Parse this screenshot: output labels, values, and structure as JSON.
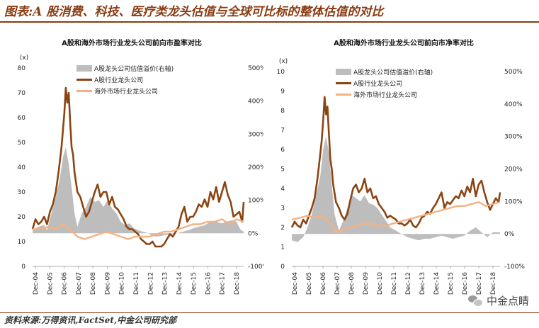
{
  "figure": {
    "title": "图表:A 股消费、科技、医疗类龙头估值与全球可比标的整体估值的对比",
    "source": "资料来源:万得资讯,FactSet,中金公司研究部",
    "watermark": "中金点睛"
  },
  "chart_data": [
    {
      "type": "line",
      "title": "A股和海外市场行业龙头公司前向市盈率对比",
      "left_unit": "(x)",
      "ylim": [
        0,
        80
      ],
      "yticks": [
        0,
        10,
        20,
        30,
        40,
        50,
        60,
        70,
        80
      ],
      "ylim_right": [
        -100,
        500
      ],
      "yticks_right": [
        -100,
        0,
        100,
        200,
        300,
        400,
        500
      ],
      "yticks_right_labels": [
        "-100%",
        "0%",
        "100%",
        "200%",
        "300%",
        "400%",
        "500%"
      ],
      "x_tick_labels": [
        "Dec-04",
        "Dec-05",
        "Dec-06",
        "Dec-07",
        "Dec-08",
        "Dec-09",
        "Dec-10",
        "Dec-11",
        "Dec-12",
        "Dec-13",
        "Dec-14",
        "Dec-15",
        "Dec-16",
        "Dec-17",
        "Dec-18"
      ],
      "xlim": [
        2004.9,
        2019.5
      ],
      "legend": {
        "position": "top-left"
      },
      "series": [
        {
          "name": "A股龙头公司估值溢价(右轴)",
          "type": "area",
          "axis": "right",
          "color": "#bdbdbd",
          "x": [
            2004.9,
            2005.3,
            2005.7,
            2005.9,
            2006.2,
            2006.5,
            2006.8,
            2007.0,
            2007.2,
            2007.4,
            2007.6,
            2007.8,
            2008.0,
            2008.3,
            2008.6,
            2008.9,
            2009.2,
            2009.5,
            2009.8,
            2010.1,
            2010.4,
            2010.7,
            2011.0,
            2011.3,
            2011.6,
            2011.9,
            2012.2,
            2012.5,
            2012.8,
            2013.1,
            2013.4,
            2013.8,
            2014.1,
            2014.5,
            2014.9,
            2015.3,
            2015.7,
            2016.0,
            2016.4,
            2016.8,
            2017.2,
            2017.6,
            2018.0,
            2018.3,
            2018.7,
            2019.0,
            2019.3,
            2019.5
          ],
          "values": [
            10,
            20,
            25,
            10,
            60,
            110,
            170,
            230,
            260,
            210,
            140,
            60,
            20,
            60,
            80,
            110,
            95,
            100,
            80,
            100,
            75,
            60,
            35,
            25,
            30,
            15,
            10,
            5,
            2,
            -5,
            -10,
            -8,
            -5,
            -3,
            0,
            5,
            10,
            15,
            20,
            25,
            35,
            35,
            30,
            35,
            40,
            35,
            10,
            5
          ]
        },
        {
          "name": "A股行业龙头公司",
          "type": "line",
          "axis": "left",
          "color": "#8b4513",
          "x": [
            2004.9,
            2005.1,
            2005.3,
            2005.5,
            2005.7,
            2005.9,
            2006.1,
            2006.3,
            2006.5,
            2006.7,
            2006.9,
            2007.0,
            2007.1,
            2007.2,
            2007.3,
            2007.4,
            2007.5,
            2007.6,
            2007.7,
            2007.8,
            2008.0,
            2008.2,
            2008.4,
            2008.6,
            2008.8,
            2009.0,
            2009.2,
            2009.4,
            2009.6,
            2009.8,
            2010.0,
            2010.2,
            2010.4,
            2010.6,
            2010.8,
            2011.0,
            2011.2,
            2011.4,
            2011.6,
            2011.8,
            2012.0,
            2012.2,
            2012.4,
            2012.6,
            2012.8,
            2013.0,
            2013.2,
            2013.4,
            2013.6,
            2013.8,
            2014.0,
            2014.2,
            2014.4,
            2014.6,
            2014.8,
            2015.0,
            2015.2,
            2015.4,
            2015.6,
            2015.8,
            2016.0,
            2016.2,
            2016.4,
            2016.6,
            2016.8,
            2017.0,
            2017.2,
            2017.4,
            2017.6,
            2017.8,
            2018.0,
            2018.2,
            2018.4,
            2018.6,
            2018.8,
            2019.0,
            2019.2,
            2019.4,
            2019.5
          ],
          "values": [
            15,
            19,
            17,
            18,
            20,
            17,
            22,
            25,
            30,
            38,
            48,
            55,
            62,
            72,
            66,
            70,
            58,
            48,
            45,
            38,
            30,
            28,
            24,
            20,
            22,
            26,
            30,
            33,
            28,
            30,
            30,
            25,
            28,
            24,
            23,
            21,
            19,
            16,
            15,
            15,
            14,
            13,
            11,
            10,
            9,
            9,
            10,
            8,
            8,
            8,
            9,
            11,
            13,
            12,
            14,
            16,
            21,
            24,
            18,
            20,
            20,
            22,
            25,
            24,
            27,
            24,
            30,
            27,
            32,
            26,
            30,
            34,
            29,
            26,
            20,
            21,
            22,
            18,
            26
          ]
        },
        {
          "name": "海外市场行业龙头公司",
          "type": "line",
          "axis": "left",
          "color": "#f4b183",
          "x": [
            2004.9,
            2005.5,
            2006.0,
            2006.5,
            2007.0,
            2007.5,
            2008.0,
            2008.5,
            2009.0,
            2009.5,
            2010.0,
            2010.5,
            2011.0,
            2011.5,
            2012.0,
            2012.5,
            2013.0,
            2013.5,
            2014.0,
            2014.5,
            2015.0,
            2015.5,
            2016.0,
            2016.5,
            2017.0,
            2017.5,
            2018.0,
            2018.5,
            2019.0,
            2019.5
          ],
          "values": [
            15,
            15,
            16,
            15,
            17,
            15,
            12,
            11,
            12,
            13,
            14,
            13,
            12,
            11,
            12,
            12,
            12,
            13,
            14,
            14,
            15,
            16,
            17,
            17,
            18,
            18,
            19,
            17,
            19,
            18
          ]
        }
      ]
    },
    {
      "type": "line",
      "title": "A股和海外市场行业龙头公司前向市净率对比",
      "left_unit": "(x)",
      "ylim": [
        0,
        10
      ],
      "yticks": [
        0,
        1,
        2,
        3,
        4,
        5,
        6,
        7,
        8,
        9,
        10
      ],
      "ylim_right": [
        -100,
        500
      ],
      "yticks_right": [
        -100,
        0,
        100,
        200,
        300,
        400,
        500
      ],
      "yticks_right_labels": [
        "-100%",
        "0%",
        "100%",
        "200%",
        "300%",
        "400%",
        "500%"
      ],
      "x_tick_labels": [
        "Dec-04",
        "Dec-05",
        "Dec-06",
        "Dec-07",
        "Dec-08",
        "Dec-09",
        "Dec-10",
        "Dec-11",
        "Dec-12",
        "Dec-13",
        "Dec-14",
        "Dec-15",
        "Dec-16",
        "Dec-17",
        "Dec-18"
      ],
      "xlim": [
        2004.9,
        2019.5
      ],
      "legend": {
        "position": "top-left"
      },
      "series": [
        {
          "name": "A股龙头公司估值溢价(右轴)",
          "type": "area",
          "axis": "right",
          "color": "#bdbdbd",
          "x": [
            2004.9,
            2005.3,
            2005.7,
            2006.0,
            2006.3,
            2006.6,
            2006.9,
            2007.1,
            2007.3,
            2007.5,
            2007.7,
            2007.9,
            2008.2,
            2008.5,
            2008.8,
            2009.1,
            2009.4,
            2009.7,
            2010.0,
            2010.3,
            2010.6,
            2010.9,
            2011.2,
            2011.5,
            2011.8,
            2012.2,
            2012.6,
            2013.0,
            2013.4,
            2013.8,
            2014.2,
            2014.6,
            2015.0,
            2015.4,
            2015.8,
            2016.2,
            2016.6,
            2017.0,
            2017.4,
            2017.8,
            2018.2,
            2018.6,
            2019.0,
            2019.5
          ],
          "values": [
            -20,
            -25,
            -10,
            20,
            60,
            120,
            180,
            260,
            300,
            250,
            150,
            60,
            10,
            40,
            80,
            120,
            110,
            100,
            120,
            95,
            90,
            80,
            60,
            40,
            20,
            10,
            0,
            -10,
            -15,
            -20,
            -15,
            -15,
            -10,
            -5,
            -10,
            -15,
            -10,
            -5,
            10,
            20,
            5,
            -10,
            5,
            5
          ]
        },
        {
          "name": "A股行业龙头公司",
          "type": "line",
          "axis": "left",
          "color": "#8b4513",
          "x": [
            2004.9,
            2005.1,
            2005.3,
            2005.5,
            2005.7,
            2005.9,
            2006.1,
            2006.3,
            2006.5,
            2006.7,
            2006.9,
            2007.0,
            2007.1,
            2007.2,
            2007.3,
            2007.4,
            2007.5,
            2007.6,
            2007.7,
            2007.8,
            2008.0,
            2008.2,
            2008.4,
            2008.6,
            2008.8,
            2009.0,
            2009.2,
            2009.4,
            2009.6,
            2009.8,
            2010.0,
            2010.2,
            2010.4,
            2010.6,
            2010.8,
            2011.0,
            2011.2,
            2011.4,
            2011.6,
            2011.8,
            2012.0,
            2012.2,
            2012.4,
            2012.6,
            2012.8,
            2013.0,
            2013.2,
            2013.4,
            2013.6,
            2013.8,
            2014.0,
            2014.2,
            2014.4,
            2014.6,
            2014.8,
            2015.0,
            2015.2,
            2015.4,
            2015.6,
            2015.8,
            2016.0,
            2016.2,
            2016.4,
            2016.6,
            2016.8,
            2017.0,
            2017.2,
            2017.4,
            2017.6,
            2017.8,
            2018.0,
            2018.2,
            2018.4,
            2018.6,
            2018.8,
            2019.0,
            2019.2,
            2019.4,
            2019.5
          ],
          "values": [
            2.0,
            2.3,
            2.1,
            2.0,
            2.4,
            2.2,
            2.6,
            3.0,
            3.5,
            4.5,
            5.8,
            6.5,
            7.5,
            8.7,
            7.8,
            8.2,
            6.8,
            5.5,
            5.0,
            4.2,
            3.3,
            3.0,
            2.6,
            2.4,
            2.7,
            3.4,
            4.0,
            4.2,
            3.8,
            4.0,
            4.5,
            3.8,
            4.0,
            3.5,
            3.6,
            3.2,
            3.0,
            2.8,
            2.5,
            2.6,
            2.5,
            2.4,
            2.2,
            2.2,
            2.1,
            2.2,
            2.4,
            2.1,
            2.0,
            2.2,
            2.5,
            2.6,
            2.8,
            2.7,
            3.0,
            3.2,
            3.5,
            3.8,
            3.0,
            3.3,
            3.2,
            3.4,
            3.6,
            3.5,
            3.9,
            3.6,
            4.1,
            3.8,
            4.5,
            3.6,
            4.2,
            4.4,
            3.8,
            3.3,
            2.9,
            3.2,
            3.5,
            3.3,
            3.8
          ]
        },
        {
          "name": "海外市场行业龙头公司",
          "type": "line",
          "axis": "left",
          "color": "#f4b183",
          "x": [
            2004.9,
            2005.5,
            2006.0,
            2006.5,
            2007.0,
            2007.5,
            2008.0,
            2008.5,
            2009.0,
            2009.5,
            2010.0,
            2010.5,
            2011.0,
            2011.5,
            2012.0,
            2012.5,
            2013.0,
            2013.5,
            2014.0,
            2014.5,
            2015.0,
            2015.5,
            2016.0,
            2016.5,
            2017.0,
            2017.5,
            2018.0,
            2018.5,
            2019.0,
            2019.5
          ],
          "values": [
            2.4,
            2.5,
            2.6,
            2.5,
            2.6,
            2.3,
            1.8,
            1.9,
            2.0,
            2.1,
            2.2,
            2.2,
            2.1,
            2.1,
            2.2,
            2.3,
            2.4,
            2.5,
            2.6,
            2.7,
            2.8,
            2.9,
            3.0,
            3.1,
            3.1,
            3.2,
            3.3,
            3.1,
            3.2,
            3.3
          ]
        }
      ]
    }
  ]
}
